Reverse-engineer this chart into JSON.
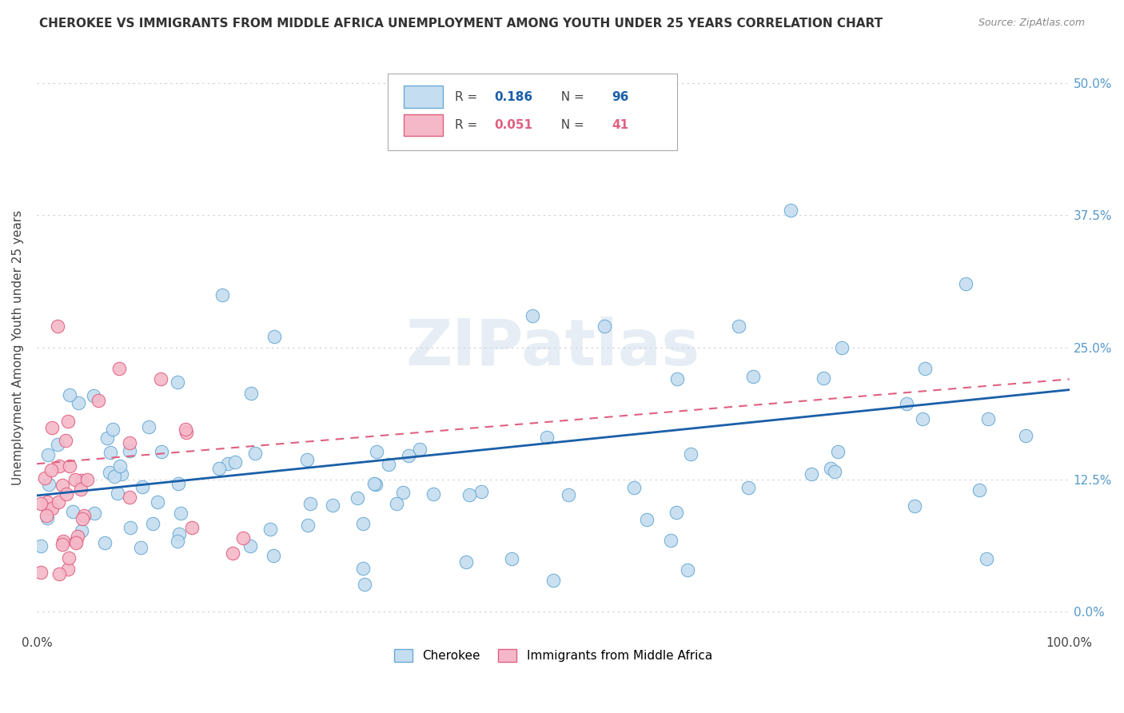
{
  "title": "CHEROKEE VS IMMIGRANTS FROM MIDDLE AFRICA UNEMPLOYMENT AMONG YOUTH UNDER 25 YEARS CORRELATION CHART",
  "source": "Source: ZipAtlas.com",
  "ylabel": "Unemployment Among Youth under 25 years",
  "watermark": "ZIPatlas",
  "cherokee_color": "#c5ddf0",
  "cherokee_edge": "#6aaad4",
  "immigrants_color": "#f5b8c8",
  "immigrants_edge": "#e06080",
  "line_cherokee": "#1a5fa8",
  "line_immigrants": "#e06080",
  "right_axis_color": "#5599cc",
  "background": "#ffffff",
  "grid_color": "#cccccc",
  "cherokee_R": 0.186,
  "cherokee_N": 96,
  "immigrants_R": 0.051,
  "immigrants_N": 41,
  "xlim": [
    0,
    100
  ],
  "ylim": [
    -2,
    52
  ],
  "yticks": [
    0,
    12.5,
    25.0,
    37.5,
    50.0
  ],
  "xticks": [
    0,
    10,
    20,
    30,
    40,
    50,
    60,
    70,
    80,
    90,
    100
  ]
}
